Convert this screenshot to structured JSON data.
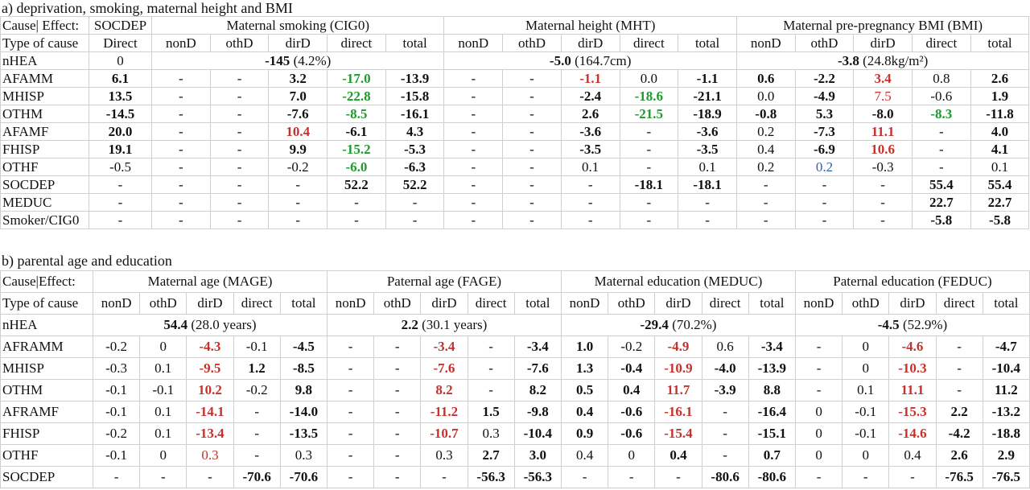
{
  "part_a": {
    "title": "a) deprivation, smoking, maternal height and BMI",
    "header": [
      "Cause| Effect:",
      "SOCDEP",
      "Maternal smoking (CIG0)",
      "Maternal height (MHT)",
      "Maternal pre-pregnancy BMI (BMI)"
    ],
    "subheader": [
      "Type of cause",
      "Direct",
      "nonD",
      "othD",
      "dirD",
      "direct",
      "total",
      "nonD",
      "othD",
      "dirD",
      "direct",
      "total",
      "nonD",
      "othD",
      "dirD",
      "direct",
      "total"
    ],
    "nhea": [
      "nHEA",
      "0"
    ],
    "nhea_groups": [
      [
        "-145",
        "(4.2%)"
      ],
      [
        "-5.0",
        "(164.7cm)"
      ],
      [
        "-3.8",
        "(24.8kg/m²)"
      ]
    ],
    "rows": [
      [
        "AFAMM",
        "6.1",
        "-",
        "-",
        "3.2",
        "-17.0",
        "-13.9",
        "-",
        "-",
        "-1.1",
        "0.0",
        "-1.1",
        "0.6",
        "-2.2",
        "3.4",
        "0.8",
        "2.6"
      ],
      [
        "MHISP",
        "13.5",
        "-",
        "-",
        "7.0",
        "-22.8",
        "-15.8",
        "-",
        "-",
        "-2.4",
        "-18.6",
        "-21.1",
        "0.0",
        "-4.9",
        "7.5",
        "-0.6",
        "1.9"
      ],
      [
        "OTHM",
        "-14.5",
        "-",
        "-",
        "-7.6",
        "-8.5",
        "-16.1",
        "-",
        "-",
        "2.6",
        "-21.5",
        "-18.9",
        "-0.8",
        "5.3",
        "-8.0",
        "-8.3",
        "-11.8"
      ],
      [
        "AFAMF",
        "20.0",
        "-",
        "-",
        "10.4",
        "-6.1",
        "4.3",
        "-",
        "-",
        "-3.6",
        "-",
        "-3.6",
        "0.2",
        "-7.3",
        "11.1",
        "-",
        "4.0"
      ],
      [
        "FHISP",
        "19.1",
        "-",
        "-",
        "9.9",
        "-15.2",
        "-5.3",
        "-",
        "-",
        "-3.5",
        "-",
        "-3.5",
        "0.4",
        "-6.9",
        "10.6",
        "-",
        "4.1"
      ],
      [
        "OTHF",
        "-0.5",
        "-",
        "-",
        "-0.2",
        "-6.0",
        "-6.3",
        "-",
        "-",
        "0.1",
        "-",
        "0.1",
        "0.2",
        "0.2",
        "-0.3",
        "-",
        "0.1"
      ],
      [
        "SOCDEP",
        "-",
        "-",
        "-",
        "-",
        "52.2",
        "52.2",
        "-",
        "-",
        "-",
        "-18.1",
        "-18.1",
        "-",
        "-",
        "-",
        "55.4",
        "55.4"
      ],
      [
        "MEDUC",
        "-",
        "-",
        "-",
        "-",
        "-",
        "-",
        "-",
        "-",
        "-",
        "-",
        "-",
        "-",
        "-",
        "-",
        "22.7",
        "22.7"
      ],
      [
        "Smoker/CIG0",
        "-",
        "-",
        "-",
        "-",
        "-",
        "-",
        "-",
        "-",
        "-",
        "-",
        "-",
        "-",
        "-",
        "-",
        "-5.8",
        "-5.8"
      ]
    ]
  },
  "part_b": {
    "title": "b) parental age and education",
    "header": [
      "Cause|Effect:",
      "Maternal age (MAGE)",
      "Paternal age (FAGE)",
      "Maternal education (MEDUC)",
      "Paternal education (FEDUC)"
    ],
    "subheader": [
      "Type of cause",
      "nonD",
      "othD",
      "dirD",
      "direct",
      "total",
      "nonD",
      "othD",
      "dirD",
      "direct",
      "total",
      "nonD",
      "othD",
      "dirD",
      "direct",
      "total",
      "nonD",
      "othD",
      "dirD",
      "direct",
      "total"
    ],
    "nhea": [
      "nHEA"
    ],
    "nhea_groups": [
      [
        "54.4",
        "(28.0 years)"
      ],
      [
        "2.2",
        "(30.1 years)"
      ],
      [
        "-29.4",
        "(70.2%)"
      ],
      [
        "-4.5",
        "(52.9%)"
      ]
    ],
    "rows": [
      [
        "AFRAMM",
        "-0.2",
        "0",
        "-4.3",
        "-0.1",
        "-4.5",
        "-",
        "-",
        "-3.4",
        "-",
        "-3.4",
        "1.0",
        "-0.2",
        "-4.9",
        "0.6",
        "-3.4",
        "-",
        "0",
        "-4.6",
        "-",
        "-4.7"
      ],
      [
        "MHISP",
        "-0.3",
        "0.1",
        "-9.5",
        "1.2",
        "-8.5",
        "-",
        "-",
        "-7.6",
        "-",
        "-7.6",
        "1.3",
        "-0.4",
        "-10.9",
        "-4.0",
        "-13.9",
        "-",
        "0",
        "-10.3",
        "-",
        "-10.4"
      ],
      [
        "OTHM",
        "-0.1",
        "-0.1",
        "10.2",
        "-0.2",
        "9.8",
        "-",
        "-",
        "8.2",
        "-",
        "8.2",
        "0.5",
        "0.4",
        "11.7",
        "-3.9",
        "8.8",
        "-",
        "0.1",
        "11.1",
        "-",
        "11.2"
      ],
      [
        "AFRAMF",
        "-0.1",
        "0.1",
        "-14.1",
        "-",
        "-14.0",
        "-",
        "-",
        "-11.2",
        "1.5",
        "-9.8",
        "0.4",
        "-0.6",
        "-16.1",
        "-",
        "-16.4",
        "0",
        "-0.1",
        "-15.3",
        "2.2",
        "-13.2"
      ],
      [
        "FHISP",
        "-0.2",
        "0.1",
        "-13.4",
        "-",
        "-13.5",
        "-",
        "-",
        "-10.7",
        "0.3",
        "-10.4",
        "0.9",
        "-0.6",
        "-15.4",
        "-",
        "-15.1",
        "0",
        "-0.1",
        "-14.6",
        "-4.2",
        "-18.8"
      ],
      [
        "OTHF",
        "-0.1",
        "0",
        "0.3",
        "-",
        "0.3",
        "-",
        "-",
        "0.3",
        "2.7",
        "3.0",
        "0.4",
        "0",
        "0.4",
        "-",
        "0.7",
        "0",
        "0",
        "0.4",
        "2.6",
        "2.9"
      ],
      [
        "SOCDEP",
        "-",
        "-",
        "-",
        "-70.6",
        "-70.6",
        "-",
        "-",
        "-",
        "-56.3",
        "-56.3",
        "-",
        "-",
        "-",
        "-80.6",
        "-80.6",
        "-",
        "-",
        "-",
        "-76.5",
        "-76.5"
      ]
    ]
  }
}
